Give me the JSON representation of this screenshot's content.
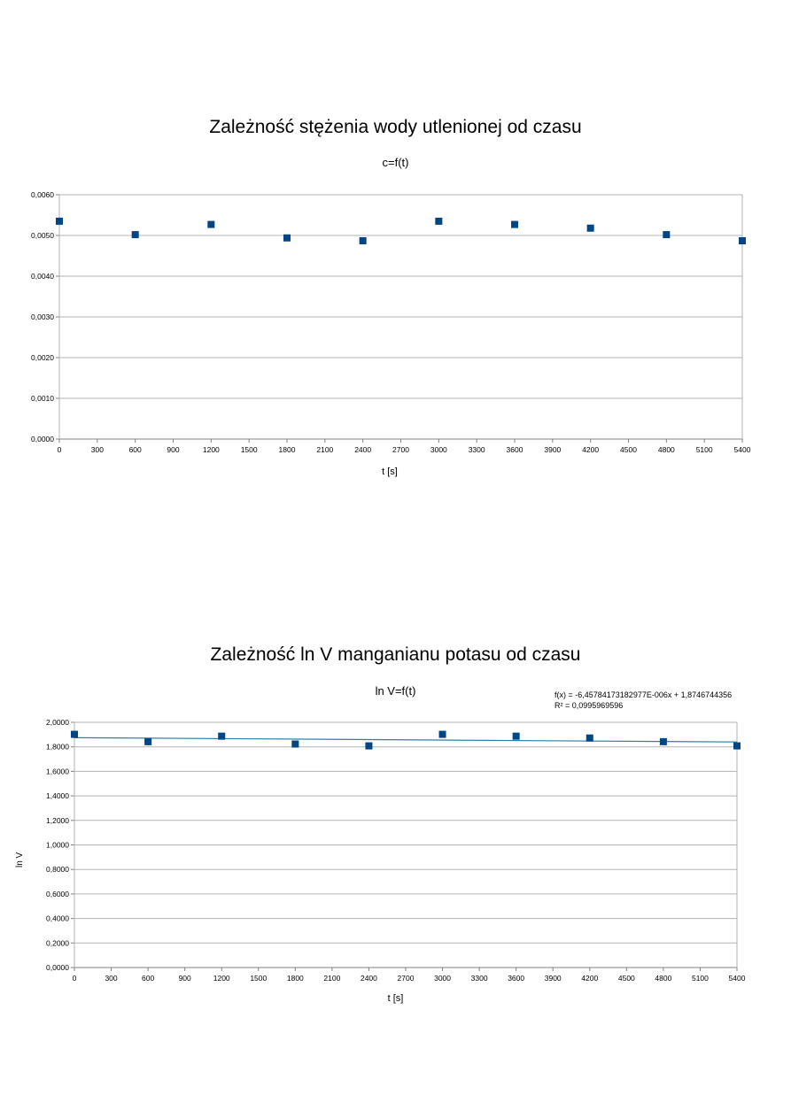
{
  "chart_data": [
    {
      "type": "scatter",
      "title": "Zależność stężenia wody utlenionej od czasu",
      "subtitle": "c=f(t)",
      "xlabel": "t [s]",
      "ylabel": "",
      "xlim": [
        0,
        5400
      ],
      "ylim": [
        0,
        0.006
      ],
      "x_ticks": [
        "0",
        "300",
        "600",
        "900",
        "1200",
        "1500",
        "1800",
        "2100",
        "2400",
        "2700",
        "3000",
        "3300",
        "3600",
        "3900",
        "4200",
        "4500",
        "4800",
        "5100",
        "5400"
      ],
      "y_ticks": [
        "0,0000",
        "0,0010",
        "0,0020",
        "0,0030",
        "0,0040",
        "0,0050",
        "0,0060"
      ],
      "grid": true,
      "marker_color": "#004586",
      "series": [
        {
          "x": [
            0,
            600,
            1200,
            1800,
            2400,
            3000,
            3600,
            4200,
            4800,
            5400
          ],
          "y": [
            0.00535,
            0.00502,
            0.00527,
            0.00494,
            0.00487,
            0.00535,
            0.00527,
            0.00518,
            0.00502,
            0.00487
          ]
        }
      ]
    },
    {
      "type": "scatter",
      "title": "Zależność ln V manganianu potasu od czasu",
      "subtitle": "ln V=f(t)",
      "xlabel": "t [s]",
      "ylabel": "ln V",
      "xlim": [
        0,
        5400
      ],
      "ylim": [
        0,
        2
      ],
      "x_ticks": [
        "0",
        "300",
        "600",
        "900",
        "1200",
        "1500",
        "1800",
        "2100",
        "2400",
        "2700",
        "3000",
        "3300",
        "3600",
        "3900",
        "4200",
        "4500",
        "4800",
        "5100",
        "5400"
      ],
      "y_ticks": [
        "0,0000",
        "0,2000",
        "0,4000",
        "0,6000",
        "0,8000",
        "1,0000",
        "1,2000",
        "1,4000",
        "1,6000",
        "1,8000",
        "2,0000"
      ],
      "grid": true,
      "marker_color": "#004586",
      "trend_color": "#2a7fa8",
      "trendline": {
        "slope": -6.45784173182977e-06,
        "intercept": 1.8746744356
      },
      "equation": "f(x) = -6,45784173182977E-006x + 1,8746744356",
      "r_squared": "R² = 0,0995969596",
      "series": [
        {
          "x": [
            0,
            600,
            1200,
            1800,
            2400,
            3000,
            3600,
            4200,
            4800,
            5400
          ],
          "y": [
            1.902,
            1.842,
            1.887,
            1.823,
            1.808,
            1.902,
            1.887,
            1.872,
            1.842,
            1.808
          ]
        }
      ]
    }
  ]
}
